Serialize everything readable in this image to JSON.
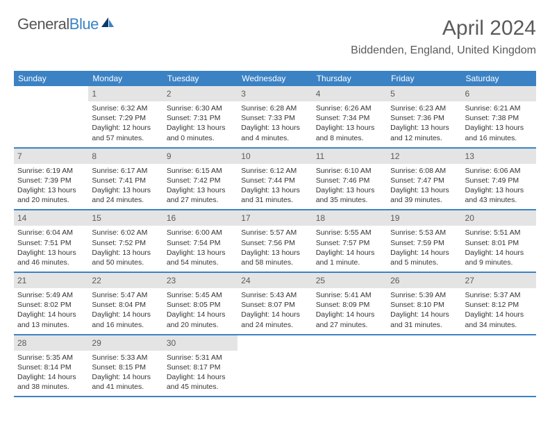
{
  "logo": {
    "text1": "General",
    "text2": "Blue"
  },
  "header": {
    "title": "April 2024",
    "location": "Biddenden, England, United Kingdom"
  },
  "colors": {
    "accent": "#3b82c4",
    "day_header_bg": "#e4e4e4",
    "text_muted": "#5a5a5a",
    "text_body": "#333333",
    "background": "#ffffff"
  },
  "weekdays": [
    "Sunday",
    "Monday",
    "Tuesday",
    "Wednesday",
    "Thursday",
    "Friday",
    "Saturday"
  ],
  "weeks": [
    [
      null,
      {
        "num": "1",
        "sunrise": "Sunrise: 6:32 AM",
        "sunset": "Sunset: 7:29 PM",
        "daylight": "Daylight: 12 hours and 57 minutes."
      },
      {
        "num": "2",
        "sunrise": "Sunrise: 6:30 AM",
        "sunset": "Sunset: 7:31 PM",
        "daylight": "Daylight: 13 hours and 0 minutes."
      },
      {
        "num": "3",
        "sunrise": "Sunrise: 6:28 AM",
        "sunset": "Sunset: 7:33 PM",
        "daylight": "Daylight: 13 hours and 4 minutes."
      },
      {
        "num": "4",
        "sunrise": "Sunrise: 6:26 AM",
        "sunset": "Sunset: 7:34 PM",
        "daylight": "Daylight: 13 hours and 8 minutes."
      },
      {
        "num": "5",
        "sunrise": "Sunrise: 6:23 AM",
        "sunset": "Sunset: 7:36 PM",
        "daylight": "Daylight: 13 hours and 12 minutes."
      },
      {
        "num": "6",
        "sunrise": "Sunrise: 6:21 AM",
        "sunset": "Sunset: 7:38 PM",
        "daylight": "Daylight: 13 hours and 16 minutes."
      }
    ],
    [
      {
        "num": "7",
        "sunrise": "Sunrise: 6:19 AM",
        "sunset": "Sunset: 7:39 PM",
        "daylight": "Daylight: 13 hours and 20 minutes."
      },
      {
        "num": "8",
        "sunrise": "Sunrise: 6:17 AM",
        "sunset": "Sunset: 7:41 PM",
        "daylight": "Daylight: 13 hours and 24 minutes."
      },
      {
        "num": "9",
        "sunrise": "Sunrise: 6:15 AM",
        "sunset": "Sunset: 7:42 PM",
        "daylight": "Daylight: 13 hours and 27 minutes."
      },
      {
        "num": "10",
        "sunrise": "Sunrise: 6:12 AM",
        "sunset": "Sunset: 7:44 PM",
        "daylight": "Daylight: 13 hours and 31 minutes."
      },
      {
        "num": "11",
        "sunrise": "Sunrise: 6:10 AM",
        "sunset": "Sunset: 7:46 PM",
        "daylight": "Daylight: 13 hours and 35 minutes."
      },
      {
        "num": "12",
        "sunrise": "Sunrise: 6:08 AM",
        "sunset": "Sunset: 7:47 PM",
        "daylight": "Daylight: 13 hours and 39 minutes."
      },
      {
        "num": "13",
        "sunrise": "Sunrise: 6:06 AM",
        "sunset": "Sunset: 7:49 PM",
        "daylight": "Daylight: 13 hours and 43 minutes."
      }
    ],
    [
      {
        "num": "14",
        "sunrise": "Sunrise: 6:04 AM",
        "sunset": "Sunset: 7:51 PM",
        "daylight": "Daylight: 13 hours and 46 minutes."
      },
      {
        "num": "15",
        "sunrise": "Sunrise: 6:02 AM",
        "sunset": "Sunset: 7:52 PM",
        "daylight": "Daylight: 13 hours and 50 minutes."
      },
      {
        "num": "16",
        "sunrise": "Sunrise: 6:00 AM",
        "sunset": "Sunset: 7:54 PM",
        "daylight": "Daylight: 13 hours and 54 minutes."
      },
      {
        "num": "17",
        "sunrise": "Sunrise: 5:57 AM",
        "sunset": "Sunset: 7:56 PM",
        "daylight": "Daylight: 13 hours and 58 minutes."
      },
      {
        "num": "18",
        "sunrise": "Sunrise: 5:55 AM",
        "sunset": "Sunset: 7:57 PM",
        "daylight": "Daylight: 14 hours and 1 minute."
      },
      {
        "num": "19",
        "sunrise": "Sunrise: 5:53 AM",
        "sunset": "Sunset: 7:59 PM",
        "daylight": "Daylight: 14 hours and 5 minutes."
      },
      {
        "num": "20",
        "sunrise": "Sunrise: 5:51 AM",
        "sunset": "Sunset: 8:01 PM",
        "daylight": "Daylight: 14 hours and 9 minutes."
      }
    ],
    [
      {
        "num": "21",
        "sunrise": "Sunrise: 5:49 AM",
        "sunset": "Sunset: 8:02 PM",
        "daylight": "Daylight: 14 hours and 13 minutes."
      },
      {
        "num": "22",
        "sunrise": "Sunrise: 5:47 AM",
        "sunset": "Sunset: 8:04 PM",
        "daylight": "Daylight: 14 hours and 16 minutes."
      },
      {
        "num": "23",
        "sunrise": "Sunrise: 5:45 AM",
        "sunset": "Sunset: 8:05 PM",
        "daylight": "Daylight: 14 hours and 20 minutes."
      },
      {
        "num": "24",
        "sunrise": "Sunrise: 5:43 AM",
        "sunset": "Sunset: 8:07 PM",
        "daylight": "Daylight: 14 hours and 24 minutes."
      },
      {
        "num": "25",
        "sunrise": "Sunrise: 5:41 AM",
        "sunset": "Sunset: 8:09 PM",
        "daylight": "Daylight: 14 hours and 27 minutes."
      },
      {
        "num": "26",
        "sunrise": "Sunrise: 5:39 AM",
        "sunset": "Sunset: 8:10 PM",
        "daylight": "Daylight: 14 hours and 31 minutes."
      },
      {
        "num": "27",
        "sunrise": "Sunrise: 5:37 AM",
        "sunset": "Sunset: 8:12 PM",
        "daylight": "Daylight: 14 hours and 34 minutes."
      }
    ],
    [
      {
        "num": "28",
        "sunrise": "Sunrise: 5:35 AM",
        "sunset": "Sunset: 8:14 PM",
        "daylight": "Daylight: 14 hours and 38 minutes."
      },
      {
        "num": "29",
        "sunrise": "Sunrise: 5:33 AM",
        "sunset": "Sunset: 8:15 PM",
        "daylight": "Daylight: 14 hours and 41 minutes."
      },
      {
        "num": "30",
        "sunrise": "Sunrise: 5:31 AM",
        "sunset": "Sunset: 8:17 PM",
        "daylight": "Daylight: 14 hours and 45 minutes."
      },
      null,
      null,
      null,
      null
    ]
  ]
}
